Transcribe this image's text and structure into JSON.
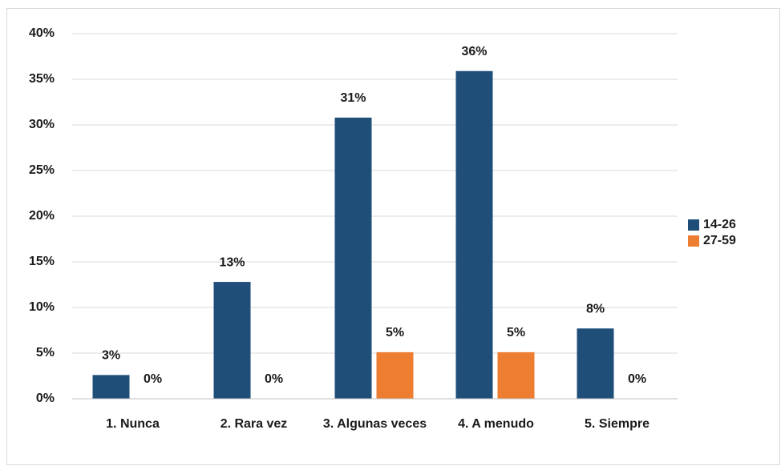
{
  "chart_data": {
    "type": "bar",
    "categories": [
      "1. Nunca",
      "2. Rara vez",
      "3. Algunas veces",
      "4. A menudo",
      "5. Siempre"
    ],
    "series": [
      {
        "name": "14-26",
        "color": "#1f4e79",
        "values": [
          2.6,
          12.8,
          30.8,
          35.9,
          7.7
        ],
        "value_labels": [
          "3%",
          "13%",
          "31%",
          "36%",
          "8%"
        ]
      },
      {
        "name": "27-59",
        "color": "#ed7d31",
        "values": [
          0,
          0,
          5.1,
          5.1,
          0
        ],
        "value_labels": [
          "0%",
          "0%",
          "5%",
          "5%",
          "0%"
        ]
      }
    ],
    "ylim": [
      0,
      40
    ],
    "yticks": [
      {
        "value": 0,
        "label": "0%"
      },
      {
        "value": 5,
        "label": "5%"
      },
      {
        "value": 10,
        "label": "10%"
      },
      {
        "value": 15,
        "label": "15%"
      },
      {
        "value": 20,
        "label": "20%"
      },
      {
        "value": 25,
        "label": "25%"
      },
      {
        "value": 30,
        "label": "30%"
      },
      {
        "value": 35,
        "label": "35%"
      },
      {
        "value": 40,
        "label": "40%"
      }
    ],
    "grid": true,
    "legend": "right"
  }
}
